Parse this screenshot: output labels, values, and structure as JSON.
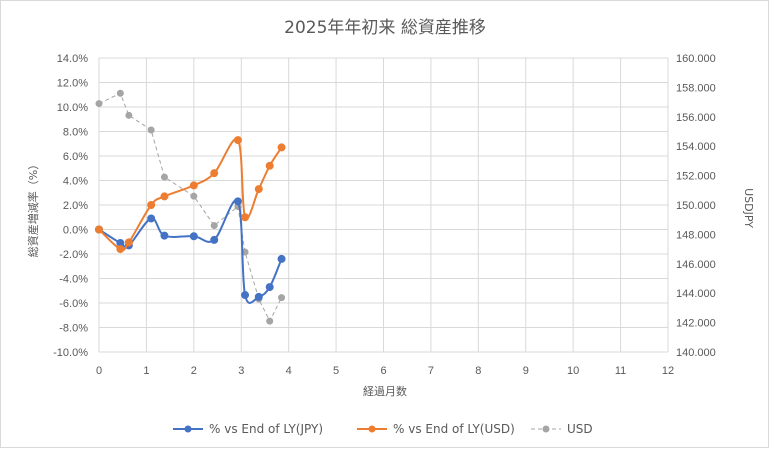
{
  "chart_data": {
    "type": "line",
    "title": "2025年年初来 総資産推移",
    "xlabel": "経過月数",
    "ylabel": "総資産増減率（%）",
    "y2label": "USDJPY",
    "xlim": [
      0,
      12
    ],
    "ylim": [
      -10.0,
      14.0
    ],
    "y2lim": [
      140.0,
      160.0
    ],
    "grid": true,
    "legend_position": "bottom",
    "x_ticks": [
      "0",
      "1",
      "2",
      "3",
      "4",
      "5",
      "6",
      "7",
      "8",
      "9",
      "10",
      "11",
      "12"
    ],
    "y_ticks": [
      "14.0%",
      "12.0%",
      "10.0%",
      "8.0%",
      "6.0%",
      "4.0%",
      "2.0%",
      "0.0%",
      "-2.0%",
      "-4.0%",
      "-6.0%",
      "-8.0%",
      "-10.0%"
    ],
    "y2_ticks": [
      "160.000",
      "158.000",
      "156.000",
      "154.000",
      "152.000",
      "150.000",
      "148.000",
      "146.000",
      "144.000",
      "142.000",
      "140.000"
    ],
    "series": [
      {
        "name": "% vs End of LY(JPY)",
        "axis": "left",
        "color": "#4472c4",
        "style": "solid-smooth",
        "x": [
          0,
          0.45,
          0.63,
          1.1,
          1.38,
          2.0,
          2.43,
          2.93,
          3.08,
          3.37,
          3.6,
          3.85
        ],
        "y": [
          0.0,
          -1.1,
          -1.3,
          0.9,
          -0.5,
          -0.55,
          -0.85,
          2.3,
          -5.35,
          -5.5,
          -4.7,
          -2.4
        ]
      },
      {
        "name": "% vs End of LY(USD)",
        "axis": "left",
        "color": "#ed7d31",
        "style": "solid-smooth",
        "x": [
          0,
          0.45,
          0.63,
          1.1,
          1.38,
          2.0,
          2.43,
          2.93,
          3.08,
          3.37,
          3.6,
          3.85
        ],
        "y": [
          0.0,
          -1.6,
          -1.05,
          2.0,
          2.7,
          3.6,
          4.6,
          7.3,
          1.0,
          3.3,
          5.2,
          6.7
        ]
      },
      {
        "name": "USD",
        "axis": "right",
        "color": "#a5a5a5",
        "style": "dashed",
        "x": [
          0,
          0.45,
          0.63,
          1.1,
          1.38,
          2.0,
          2.43,
          2.93,
          3.08,
          3.37,
          3.6,
          3.85
        ],
        "y": [
          156.9,
          157.6,
          156.1,
          155.1,
          151.9,
          150.6,
          148.6,
          149.9,
          146.8,
          143.6,
          142.1,
          143.7
        ]
      }
    ]
  }
}
